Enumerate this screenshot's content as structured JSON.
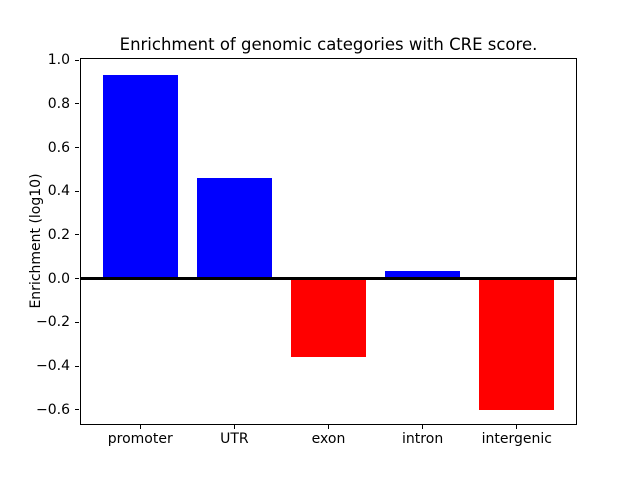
{
  "chart_data": {
    "type": "bar",
    "title": "Enrichment of genomic categories with CRE score.",
    "xlabel": "",
    "ylabel": "Enrichment (log10)",
    "categories": [
      "promoter",
      "UTR",
      "exon",
      "intron",
      "intergenic"
    ],
    "values": [
      0.93,
      0.46,
      -0.36,
      0.035,
      -0.6
    ],
    "bar_colors": [
      "#0000ff",
      "#0000ff",
      "#ff0000",
      "#0000ff",
      "#ff0000"
    ],
    "positive_color": "#0000ff",
    "negative_color": "#ff0000",
    "yticks": [
      1.0,
      0.8,
      0.6,
      0.4,
      0.2,
      0.0,
      -0.2,
      -0.4,
      -0.6
    ],
    "ytick_labels": [
      "1.0",
      "0.8",
      "0.6",
      "0.4",
      "0.2",
      "0.0",
      "−0.2",
      "−0.4",
      "−0.6"
    ],
    "ylim": [
      -0.67,
      1.01
    ],
    "xlim": [
      -0.64,
      4.64
    ],
    "bar_width": 0.8,
    "zero_line": true,
    "zero_line_color": "#000000",
    "grid": false,
    "legend": false,
    "background_color": "#ffffff",
    "spine_color": "#000000"
  }
}
